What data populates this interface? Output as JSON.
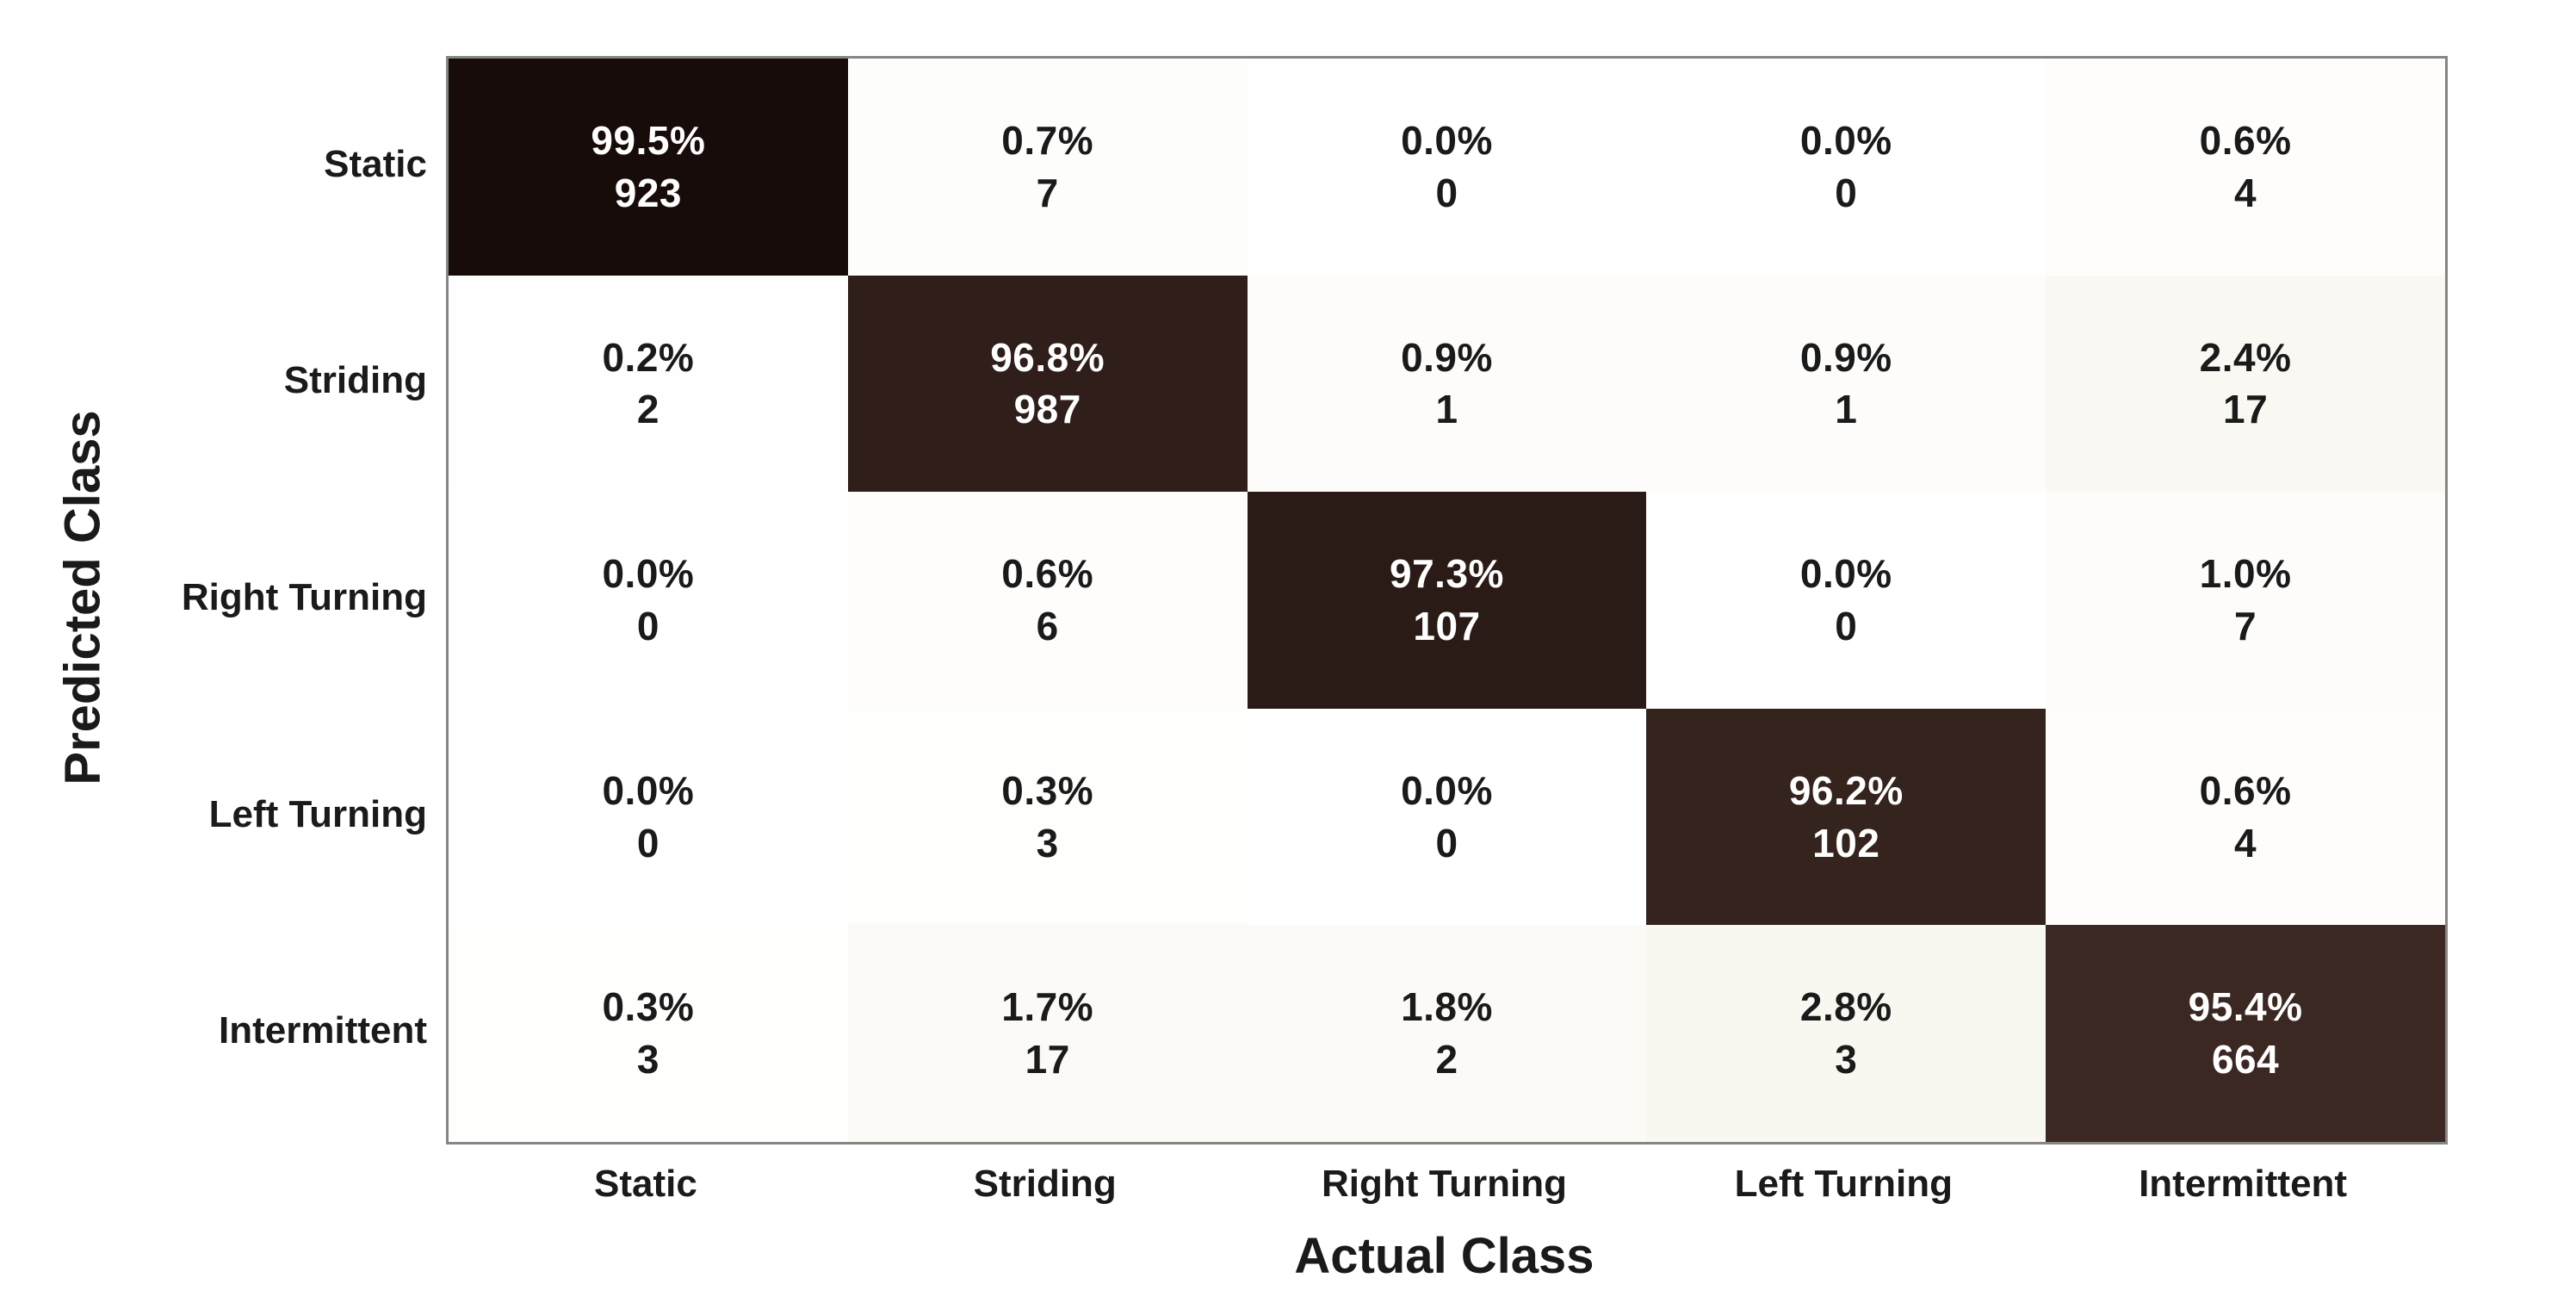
{
  "chart_data": {
    "type": "heatmap",
    "subtype": "confusion-matrix",
    "xlabel": "Actual Class",
    "ylabel": "Predicted Class",
    "classes": [
      "Static",
      "Striding",
      "Right Turning",
      "Left Turning",
      "Intermittent"
    ],
    "cells": [
      [
        {
          "pct": 99.5,
          "pct_label": "99.5%",
          "count": "923"
        },
        {
          "pct": 0.7,
          "pct_label": "0.7%",
          "count": "7"
        },
        {
          "pct": 0.0,
          "pct_label": "0.0%",
          "count": "0"
        },
        {
          "pct": 0.0,
          "pct_label": "0.0%",
          "count": "0"
        },
        {
          "pct": 0.6,
          "pct_label": "0.6%",
          "count": "4"
        }
      ],
      [
        {
          "pct": 0.2,
          "pct_label": "0.2%",
          "count": "2"
        },
        {
          "pct": 96.8,
          "pct_label": "96.8%",
          "count": "987"
        },
        {
          "pct": 0.9,
          "pct_label": "0.9%",
          "count": "1"
        },
        {
          "pct": 0.9,
          "pct_label": "0.9%",
          "count": "1"
        },
        {
          "pct": 2.4,
          "pct_label": "2.4%",
          "count": "17"
        }
      ],
      [
        {
          "pct": 0.0,
          "pct_label": "0.0%",
          "count": "0"
        },
        {
          "pct": 0.6,
          "pct_label": "0.6%",
          "count": "6"
        },
        {
          "pct": 97.3,
          "pct_label": "97.3%",
          "count": "107"
        },
        {
          "pct": 0.0,
          "pct_label": "0.0%",
          "count": "0"
        },
        {
          "pct": 1.0,
          "pct_label": "1.0%",
          "count": "7"
        }
      ],
      [
        {
          "pct": 0.0,
          "pct_label": "0.0%",
          "count": "0"
        },
        {
          "pct": 0.3,
          "pct_label": "0.3%",
          "count": "3"
        },
        {
          "pct": 0.0,
          "pct_label": "0.0%",
          "count": "0"
        },
        {
          "pct": 96.2,
          "pct_label": "96.2%",
          "count": "102"
        },
        {
          "pct": 0.6,
          "pct_label": "0.6%",
          "count": "4"
        }
      ],
      [
        {
          "pct": 0.3,
          "pct_label": "0.3%",
          "count": "3"
        },
        {
          "pct": 1.7,
          "pct_label": "1.7%",
          "count": "17"
        },
        {
          "pct": 1.8,
          "pct_label": "1.8%",
          "count": "2"
        },
        {
          "pct": 2.8,
          "pct_label": "2.8%",
          "count": "3"
        },
        {
          "pct": 95.4,
          "pct_label": "95.4%",
          "count": "664"
        }
      ]
    ],
    "colors": {
      "diagonal_light_end": "#402b26",
      "diagonal_dark_end": "#120806",
      "offdiagonal_tint_base": "#d8cfa8",
      "cell_text_on_dark": "#ffffff",
      "cell_text_on_light": "#1a1a1a",
      "plot_border": "#858585",
      "background": "#ffffff"
    },
    "layout": {
      "grid": "5x5",
      "diagonal_dark": true,
      "row_axis_side": "left",
      "col_axis_side": "bottom"
    }
  }
}
